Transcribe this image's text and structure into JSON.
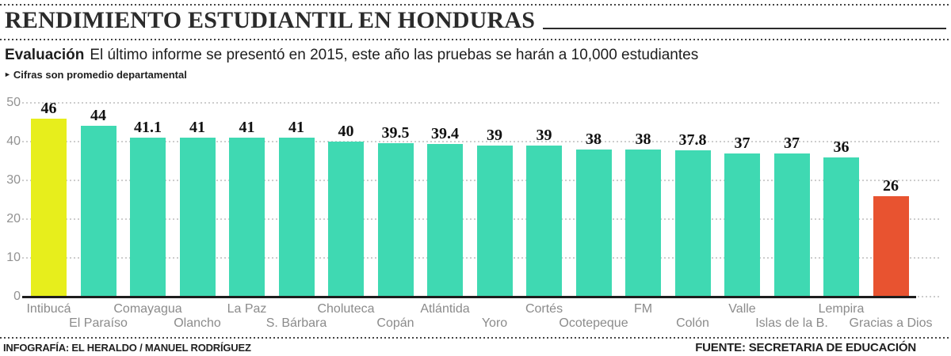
{
  "header": {
    "title": "RENDIMIENTO ESTUDIANTIL EN HONDURAS",
    "subtitle_lead": "Evaluación",
    "subtitle_rest": "El último informe se presentó en 2015, este año las pruebas se harán a 10,000 estudiantes",
    "note_bullet": "►",
    "note": "Cifras son promedio departamental"
  },
  "chart_data": {
    "type": "bar",
    "title": "Rendimiento estudiantil en Honduras",
    "subtitle": "Cifras son promedio departamental",
    "categories": [
      "Intibucá",
      "El Paraíso",
      "Comayagua",
      "Olancho",
      "La Paz",
      "S. Bárbara",
      "Choluteca",
      "Copán",
      "Atlántida",
      "Yoro",
      "Cortés",
      "Ocotepeque",
      "FM",
      "Colón",
      "Valle",
      "Islas de la B.",
      "Lempira",
      "Gracias a Dios"
    ],
    "values": [
      46,
      44,
      41.1,
      41,
      41,
      41,
      40,
      39.5,
      39.4,
      39,
      39,
      38,
      38,
      37.8,
      37,
      37,
      36,
      26
    ],
    "value_labels": [
      "46",
      "44",
      "41.1",
      "41",
      "41",
      "41",
      "40",
      "39.5",
      "39.4",
      "39",
      "39",
      "38",
      "38",
      "37.8",
      "37",
      "37",
      "36",
      "26"
    ],
    "bar_colors": [
      "#e7ee1c",
      "#3fd9b2",
      "#3fd9b2",
      "#3fd9b2",
      "#3fd9b2",
      "#3fd9b2",
      "#3fd9b2",
      "#3fd9b2",
      "#3fd9b2",
      "#3fd9b2",
      "#3fd9b2",
      "#3fd9b2",
      "#3fd9b2",
      "#3fd9b2",
      "#3fd9b2",
      "#3fd9b2",
      "#3fd9b2",
      "#e85330"
    ],
    "xlabel": "",
    "ylabel": "",
    "ylim": [
      0,
      50
    ],
    "yticks": [
      0,
      10,
      20,
      30,
      40,
      50
    ],
    "grid": "horizontal-dotted",
    "legend": "none"
  },
  "footer": {
    "credit": "INFOGRAFÍA: EL HERALDO / MANUEL RODRÍGUEZ",
    "source": "FUENTE: SECRETARIA DE EDUCACIÓN"
  },
  "colors": {
    "series_teal": "#3fd9b2",
    "highlight_top_yellow": "#e7ee1c",
    "highlight_low_red": "#e85330",
    "text_dark": "#1f1f1f",
    "axis_gray": "#8b8b8b",
    "grid_gray": "#cdcdcd"
  }
}
